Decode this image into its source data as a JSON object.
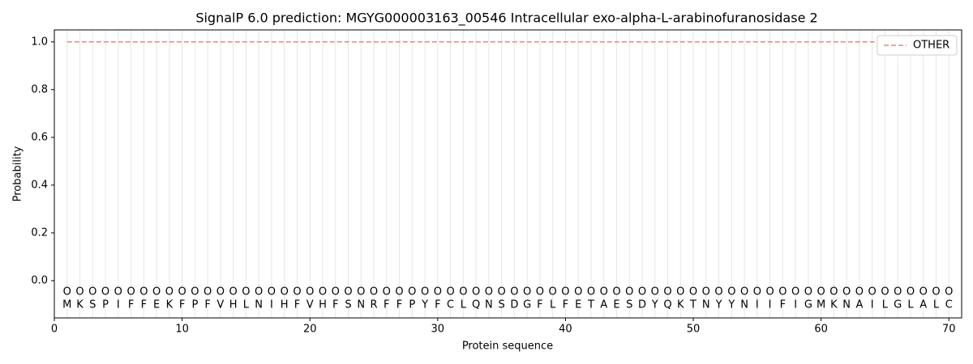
{
  "chart_data": {
    "type": "line",
    "title": "SignalP 6.0 prediction: MGYG000003163_00546 Intracellular exo-alpha-L-arabinofuranosidase 2",
    "x_label": "Protein sequence",
    "y_label": "Probability",
    "x": [
      1,
      2,
      3,
      4,
      5,
      6,
      7,
      8,
      9,
      10,
      11,
      12,
      13,
      14,
      15,
      16,
      17,
      18,
      19,
      20,
      21,
      22,
      23,
      24,
      25,
      26,
      27,
      28,
      29,
      30,
      31,
      32,
      33,
      34,
      35,
      36,
      37,
      38,
      39,
      40,
      41,
      42,
      43,
      44,
      45,
      46,
      47,
      48,
      49,
      50,
      51,
      52,
      53,
      54,
      55,
      56,
      57,
      58,
      59,
      60,
      61,
      62,
      63,
      64,
      65,
      66,
      67,
      68,
      69,
      70
    ],
    "residues": [
      "M",
      "K",
      "S",
      "P",
      "I",
      "F",
      "F",
      "E",
      "K",
      "F",
      "P",
      "F",
      "V",
      "H",
      "L",
      "N",
      "I",
      "H",
      "F",
      "V",
      "H",
      "F",
      "S",
      "N",
      "R",
      "F",
      "F",
      "P",
      "Y",
      "F",
      "C",
      "L",
      "Q",
      "N",
      "S",
      "D",
      "G",
      "F",
      "L",
      "F",
      "E",
      "T",
      "A",
      "E",
      "S",
      "D",
      "Y",
      "Q",
      "K",
      "T",
      "N",
      "Y",
      "Y",
      "N",
      "I",
      "I",
      "F",
      "I",
      "G",
      "M",
      "K",
      "N",
      "A",
      "I",
      "L",
      "G",
      "L",
      "A",
      "L",
      "C"
    ],
    "region_labels": [
      "O",
      "O",
      "O",
      "O",
      "O",
      "O",
      "O",
      "O",
      "O",
      "O",
      "O",
      "O",
      "O",
      "O",
      "O",
      "O",
      "O",
      "O",
      "O",
      "O",
      "O",
      "O",
      "O",
      "O",
      "O",
      "O",
      "O",
      "O",
      "O",
      "O",
      "O",
      "O",
      "O",
      "O",
      "O",
      "O",
      "O",
      "O",
      "O",
      "O",
      "O",
      "O",
      "O",
      "O",
      "O",
      "O",
      "O",
      "O",
      "O",
      "O",
      "O",
      "O",
      "O",
      "O",
      "O",
      "O",
      "O",
      "O",
      "O",
      "O",
      "O",
      "O",
      "O",
      "O",
      "O",
      "O",
      "O",
      "O",
      "O",
      "O"
    ],
    "series": [
      {
        "name": "OTHER",
        "color": "#f08080",
        "dashed": true,
        "values": [
          1,
          1,
          1,
          1,
          1,
          1,
          1,
          1,
          1,
          1,
          1,
          1,
          1,
          1,
          1,
          1,
          1,
          1,
          1,
          1,
          1,
          1,
          1,
          1,
          1,
          1,
          1,
          1,
          1,
          1,
          1,
          1,
          1,
          1,
          1,
          1,
          1,
          1,
          1,
          1,
          1,
          1,
          1,
          1,
          1,
          1,
          1,
          1,
          1,
          1,
          1,
          1,
          1,
          1,
          1,
          1,
          1,
          1,
          1,
          1,
          1,
          1,
          1,
          1,
          1,
          1,
          1,
          1,
          1,
          1
        ]
      }
    ],
    "xlim": [
      0,
      71
    ],
    "ylim": [
      -0.156,
      1.05
    ],
    "xticks": [
      0,
      10,
      20,
      30,
      40,
      50,
      60,
      70
    ],
    "yticks": [
      {
        "value": 0,
        "label": "0.0"
      },
      {
        "value": 0.2,
        "label": "0.2"
      },
      {
        "value": 0.4,
        "label": "0.4"
      },
      {
        "value": 0.6,
        "label": "0.6"
      },
      {
        "value": 0.8,
        "label": "0.8"
      },
      {
        "value": 1,
        "label": "1.0"
      }
    ],
    "legend": "upper right"
  }
}
